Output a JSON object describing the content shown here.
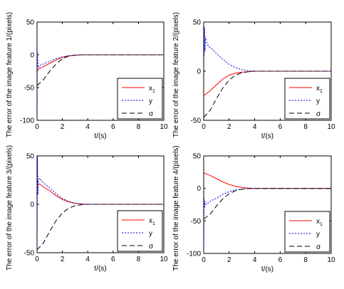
{
  "chart_data": [
    {
      "type": "line",
      "xlabel": "t/(s)",
      "ylabel": "The error of the image feature 1/(pixels)",
      "xlim": [
        0,
        10
      ],
      "ylim": [
        -100,
        50
      ],
      "xticks": [
        0,
        2,
        4,
        6,
        8,
        10
      ],
      "yticks": [
        -100,
        -50,
        0,
        50
      ],
      "grid": false,
      "legend_position": "bottom-right",
      "series": [
        {
          "name": "x1",
          "color": "#ff0000",
          "dash": "solid",
          "x": [
            0,
            0.1,
            0.5,
            1,
            1.5,
            2,
            2.5,
            3,
            3.5,
            4,
            5,
            10
          ],
          "y": [
            -25,
            -22,
            -18,
            -13,
            -8,
            -4,
            -1.5,
            -0.5,
            0,
            0,
            0,
            0
          ]
        },
        {
          "name": "y",
          "color": "#0000cc",
          "dash": "dotted",
          "x": [
            0,
            0.02,
            0.06,
            0.1,
            0.2,
            0.5,
            1,
            1.5,
            2,
            2.5,
            3,
            3.5,
            4,
            5,
            10
          ],
          "y": [
            -100,
            5,
            -10,
            -20,
            -16,
            -14,
            -10,
            -6,
            -3,
            -1.5,
            -0.5,
            0,
            0,
            0,
            0
          ]
        },
        {
          "name": "σ",
          "color": "#000000",
          "dash": "dashed",
          "x": [
            0,
            0.5,
            1,
            1.5,
            2,
            2.5,
            3,
            3.5,
            4,
            5,
            10
          ],
          "y": [
            -47,
            -38,
            -25,
            -14,
            -6,
            -2,
            -0.5,
            0,
            0,
            0,
            0
          ]
        }
      ]
    },
    {
      "type": "line",
      "xlabel": "t/(s)",
      "ylabel": "The error of the image feature 2/(pixels)",
      "xlim": [
        0,
        10
      ],
      "ylim": [
        -50,
        50
      ],
      "xticks": [
        0,
        2,
        4,
        6,
        8,
        10
      ],
      "yticks": [
        -50,
        0,
        50
      ],
      "grid": false,
      "legend_position": "bottom-right",
      "series": [
        {
          "name": "x1",
          "color": "#ff0000",
          "dash": "solid",
          "x": [
            0,
            0.5,
            1,
            1.5,
            2,
            2.5,
            3,
            3.5,
            4,
            5,
            10
          ],
          "y": [
            -25,
            -20,
            -14,
            -8,
            -4,
            -2,
            -1,
            -0.5,
            0,
            0,
            0
          ]
        },
        {
          "name": "y",
          "color": "#0000cc",
          "dash": "dotted",
          "x": [
            0,
            0.03,
            0.06,
            0.1,
            0.15,
            0.2,
            0.4,
            0.7,
            1,
            1.5,
            2,
            2.5,
            3,
            3.5,
            4,
            5,
            10
          ],
          "y": [
            50,
            15,
            45,
            20,
            35,
            30,
            25,
            22,
            18,
            12,
            7,
            3.5,
            1.5,
            0.5,
            0,
            0,
            0
          ]
        },
        {
          "name": "σ",
          "color": "#000000",
          "dash": "dashed",
          "x": [
            0,
            0.5,
            1,
            1.5,
            2,
            2.5,
            3,
            3.5,
            4,
            5,
            10
          ],
          "y": [
            -47,
            -40,
            -28,
            -17,
            -9,
            -4,
            -1.5,
            -0.5,
            0,
            0,
            0
          ]
        }
      ]
    },
    {
      "type": "line",
      "xlabel": "t/(s)",
      "ylabel": "The error of the image feature 3/(pixels)",
      "xlim": [
        0,
        10
      ],
      "ylim": [
        -50,
        50
      ],
      "xticks": [
        0,
        2,
        4,
        6,
        8,
        10
      ],
      "yticks": [
        -50,
        0,
        50
      ],
      "grid": false,
      "legend_position": "bottom-right",
      "series": [
        {
          "name": "x1",
          "color": "#ff0000",
          "dash": "solid",
          "x": [
            0,
            0.2,
            0.5,
            1,
            1.5,
            2,
            2.5,
            3,
            3.5,
            4,
            5,
            10
          ],
          "y": [
            20,
            21,
            18,
            14,
            9,
            5,
            2.5,
            1,
            0.3,
            0,
            0,
            0
          ]
        },
        {
          "name": "y",
          "color": "#0000cc",
          "dash": "dotted",
          "x": [
            0,
            0.03,
            0.07,
            0.1,
            0.2,
            0.5,
            1,
            1.5,
            2,
            2.5,
            3,
            3.5,
            4,
            5,
            10
          ],
          "y": [
            -50,
            50,
            10,
            25,
            27,
            22,
            17,
            11,
            6,
            3,
            1.2,
            0.4,
            0,
            0,
            0
          ]
        },
        {
          "name": "σ",
          "color": "#000000",
          "dash": "dashed",
          "x": [
            0,
            0.5,
            1,
            1.5,
            2,
            2.5,
            3,
            3.5,
            4,
            5,
            10
          ],
          "y": [
            -47,
            -40,
            -28,
            -17,
            -9,
            -4,
            -1.5,
            -0.5,
            0,
            0,
            0
          ]
        }
      ]
    },
    {
      "type": "line",
      "xlabel": "t/(s)",
      "ylabel": "The error of the image feature 4/(pixels)",
      "xlim": [
        0,
        10
      ],
      "ylim": [
        -100,
        50
      ],
      "xticks": [
        0,
        2,
        4,
        6,
        8,
        10
      ],
      "yticks": [
        -100,
        -50,
        0,
        50
      ],
      "grid": false,
      "legend_position": "bottom-right",
      "series": [
        {
          "name": "x1",
          "color": "#ff0000",
          "dash": "solid",
          "x": [
            0,
            0.5,
            1,
            1.5,
            2,
            2.5,
            3,
            3.5,
            4,
            5,
            10
          ],
          "y": [
            24,
            20,
            15,
            10,
            6,
            3,
            1.5,
            0.5,
            0,
            0,
            0
          ]
        },
        {
          "name": "y",
          "color": "#0000cc",
          "dash": "dotted",
          "x": [
            0,
            0.03,
            0.06,
            0.1,
            0.2,
            0.5,
            1,
            1.5,
            2,
            2.5,
            3,
            3.5,
            4,
            5,
            10
          ],
          "y": [
            -100,
            -15,
            -30,
            -20,
            -25,
            -20,
            -15,
            -9,
            -5,
            -2.5,
            -1,
            -0.3,
            0,
            0,
            0
          ]
        },
        {
          "name": "σ",
          "color": "#000000",
          "dash": "dashed",
          "x": [
            0,
            0.5,
            1,
            1.5,
            2,
            2.5,
            3,
            3.5,
            4,
            5,
            10
          ],
          "y": [
            -47,
            -40,
            -27,
            -16,
            -8,
            -3.5,
            -1.2,
            -0.3,
            0,
            0,
            0
          ]
        }
      ]
    }
  ]
}
